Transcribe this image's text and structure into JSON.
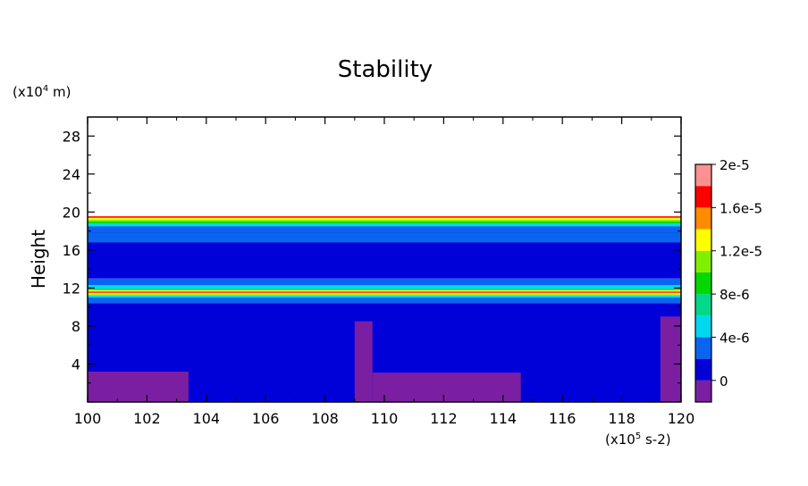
{
  "chart_data": {
    "type": "heatmap",
    "title": "Stability",
    "ylabel": "Height",
    "y_unit_label": "(x10",
    "y_unit_exp": "4",
    "y_unit_suffix": " m)",
    "x_unit_label": "(x10",
    "x_unit_exp": "5",
    "x_unit_suffix": " s-2)",
    "xlim": [
      100,
      120
    ],
    "ylim": [
      0,
      30
    ],
    "x_ticks": [
      "100",
      "102",
      "104",
      "106",
      "108",
      "110",
      "112",
      "114",
      "116",
      "118",
      "120"
    ],
    "y_ticks": [
      "4",
      "8",
      "12",
      "16",
      "20",
      "24",
      "28"
    ],
    "colorbar": {
      "labels": [
        "0",
        "4e-6",
        "8e-6",
        "1.2e-5",
        "1.6e-5",
        "2e-5"
      ],
      "colors": [
        "#7a1fa2",
        "#0000d8",
        "#0a64f0",
        "#00d8f0",
        "#00d88a",
        "#00d800",
        "#80f000",
        "#ffff00",
        "#ff8c00",
        "#ff0000",
        "#ff9090"
      ]
    },
    "bands": [
      {
        "y": [
          10.4,
          11.0
        ],
        "level": 2
      },
      {
        "y": [
          11.0,
          11.2
        ],
        "level": 3
      },
      {
        "y": [
          11.2,
          11.35
        ],
        "level": 6
      },
      {
        "y": [
          11.35,
          11.5
        ],
        "level": 7
      },
      {
        "y": [
          11.5,
          11.62
        ],
        "level": 9
      },
      {
        "y": [
          11.62,
          11.78
        ],
        "level": 7
      },
      {
        "y": [
          11.78,
          11.95
        ],
        "level": 4
      },
      {
        "y": [
          11.95,
          12.3
        ],
        "level": 3
      },
      {
        "y": [
          12.3,
          13.0
        ],
        "level": 2
      },
      {
        "y": [
          16.8,
          17.8
        ],
        "level": 2
      },
      {
        "y": [
          17.8,
          18.5
        ],
        "level": 2
      },
      {
        "y": [
          18.5,
          18.8
        ],
        "level": 3
      },
      {
        "y": [
          18.8,
          19.0
        ],
        "level": 5
      },
      {
        "y": [
          19.0,
          19.2
        ],
        "level": 6
      },
      {
        "y": [
          19.2,
          19.4
        ],
        "level": 7
      },
      {
        "y": [
          19.4,
          19.55
        ],
        "level": 9
      }
    ],
    "purple_patches": [
      {
        "x": [
          100,
          103.4
        ],
        "y": [
          0,
          3.2
        ]
      },
      {
        "x": [
          109.0,
          109.6
        ],
        "y": [
          0,
          8.5
        ]
      },
      {
        "x": [
          109.6,
          114.6
        ],
        "y": [
          0,
          3.1
        ]
      },
      {
        "x": [
          119.3,
          120
        ],
        "y": [
          0,
          9.0
        ]
      }
    ]
  }
}
